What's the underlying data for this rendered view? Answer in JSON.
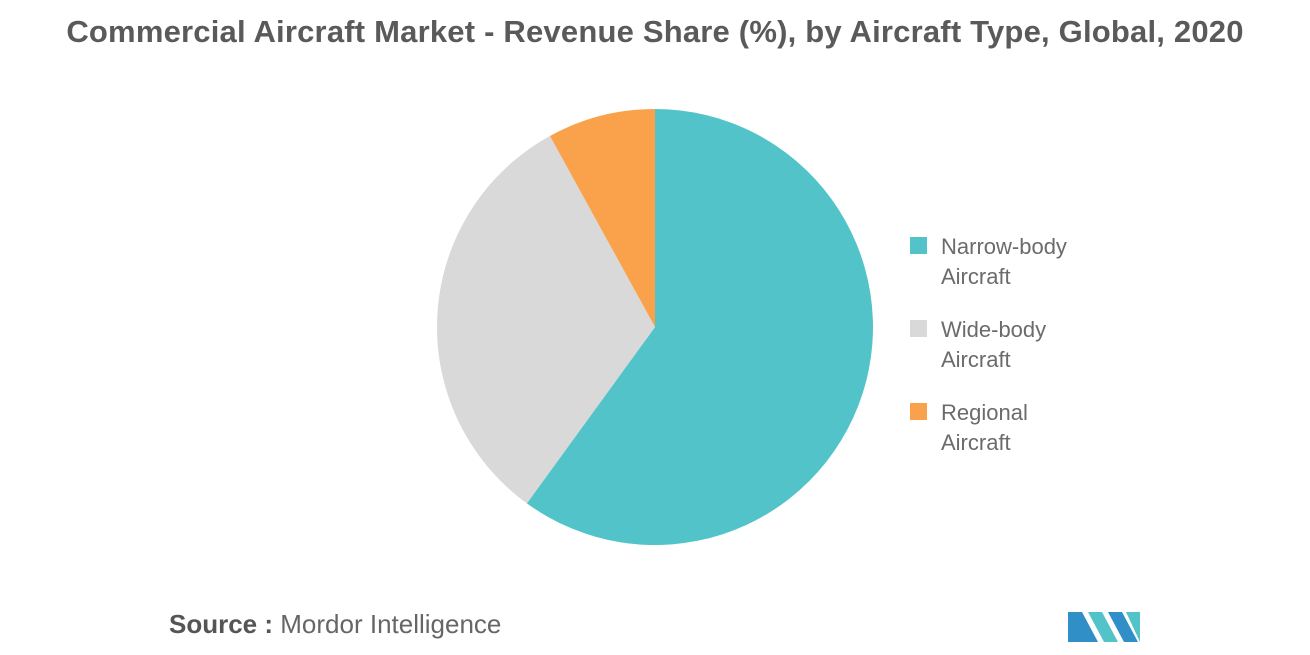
{
  "chart_data": {
    "type": "pie",
    "title": "Commercial Aircraft Market - Revenue Share (%), by Aircraft Type, Global, 2020",
    "legend_position": "right",
    "series": [
      {
        "label_lines": [
          "Narrow-body",
          "Aircraft"
        ],
        "value": 60,
        "color": "#52C4C9"
      },
      {
        "label_lines": [
          "Wide-body",
          "Aircraft"
        ],
        "value": 32,
        "color": "#D9D9D9"
      },
      {
        "label_lines": [
          "Regional",
          "Aircraft"
        ],
        "value": 8,
        "color": "#F9A24B"
      }
    ]
  },
  "source": {
    "prefix": "Source :",
    "name": "Mordor Intelligence"
  },
  "logo": {
    "icon": "mordor-intelligence-logo",
    "colors": [
      "#2F8FC6",
      "#52C4C9"
    ]
  }
}
